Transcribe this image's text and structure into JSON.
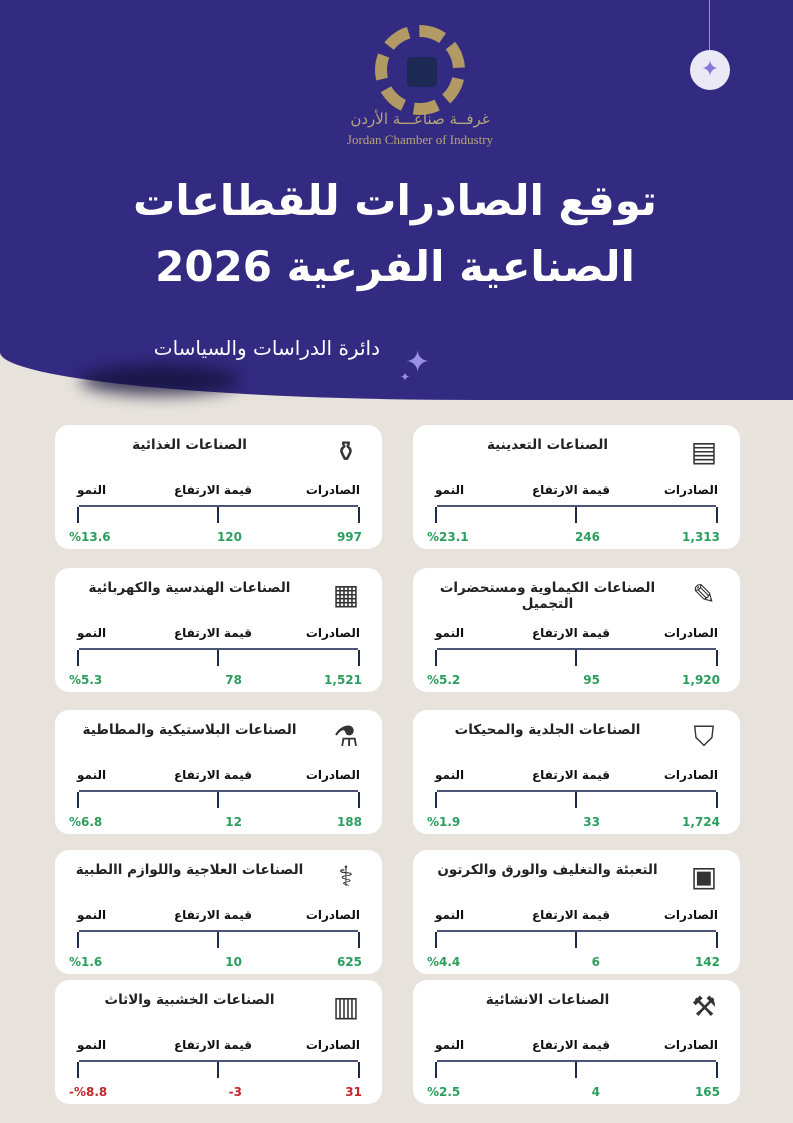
{
  "header": {
    "org_ar": "غرفــة صناعـــة الأردن",
    "org_en": "Jordan Chamber of Industry",
    "title": "توقع الصادرات للقطاعات الصناعية الفرعية 2026",
    "department": "دائرة الدراسات والسياسات"
  },
  "labels": {
    "exports": "الصادرات",
    "increase": "قيمة الارتفاع",
    "growth": "النمو"
  },
  "colors": {
    "header": "#332a82",
    "positive": "#2b9e5d",
    "negative": "#c4262b",
    "background": "#e7e3dc"
  },
  "sectors": [
    {
      "title": "الصناعات التعدينية",
      "icon": "gold-bars-icon",
      "exports": "1,313",
      "increase": "246",
      "growth": "%23.1",
      "negative": false
    },
    {
      "title": "الصناعات الغذائية",
      "icon": "food-production-icon",
      "exports": "997",
      "increase": "120",
      "growth": "%13.6",
      "negative": false
    },
    {
      "title": "الصناعات الكيماوية ومستحضرات التجميل",
      "icon": "cosmetics-icon",
      "exports": "1,920",
      "increase": "95",
      "growth": "%5.2",
      "negative": false
    },
    {
      "title": "الصناعات الهندسية والكهربائية",
      "icon": "circuit-laptop-icon",
      "exports": "1,521",
      "increase": "78",
      "growth": "%5.3",
      "negative": false
    },
    {
      "title": "الصناعات الجلدية والمحيكات",
      "icon": "jacket-icon",
      "exports": "1,724",
      "increase": "33",
      "growth": "%1.9",
      "negative": false
    },
    {
      "title": "الصناعات البلاستيكية والمطاطية",
      "icon": "plastic-bottle-icon",
      "exports": "188",
      "increase": "12",
      "growth": "%6.8",
      "negative": false
    },
    {
      "title": "التعبئة والتغليف والورق والكرتون",
      "icon": "box-icon",
      "exports": "142",
      "increase": "6",
      "growth": "%4.4",
      "negative": false
    },
    {
      "title": "الصناعات العلاجية واللوازم االطبية",
      "icon": "medicine-icon",
      "exports": "625",
      "increase": "10",
      "growth": "%1.6",
      "negative": false
    },
    {
      "title": "الصناعات الانشائية",
      "icon": "crane-icon",
      "exports": "165",
      "increase": "4",
      "growth": "%2.5",
      "negative": false
    },
    {
      "title": "الصناعات الخشبية والاثاث",
      "icon": "furniture-icon",
      "exports": "31",
      "increase": "-3",
      "growth": "-%8.8",
      "negative": true
    }
  ]
}
